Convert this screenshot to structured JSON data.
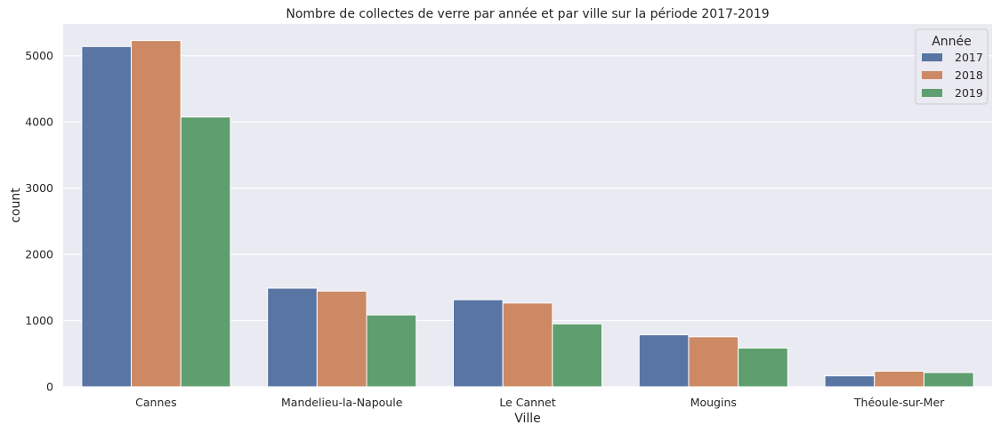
{
  "chart_data": {
    "type": "bar",
    "title": "Nombre de collectes de verre par année et par ville sur la période 2017-2019",
    "xlabel": "Ville",
    "ylabel": "count",
    "categories": [
      "Cannes",
      "Mandelieu-la-Napoule",
      "Le Cannet",
      "Mougins",
      "Théoule-sur-Mer"
    ],
    "series": [
      {
        "name": "2017",
        "color": "#5975a4",
        "values": [
          5140,
          1490,
          1315,
          785,
          165
        ]
      },
      {
        "name": "2018",
        "color": "#cc8963",
        "values": [
          5230,
          1445,
          1265,
          755,
          235
        ]
      },
      {
        "name": "2019",
        "color": "#5f9e6e",
        "values": [
          4075,
          1085,
          950,
          585,
          215
        ]
      }
    ],
    "ylim": [
      0,
      5480
    ],
    "yticks": [
      0,
      1000,
      2000,
      3000,
      4000,
      5000
    ],
    "legend": {
      "title": "Année",
      "placement": "top-right"
    },
    "grid": true,
    "background": "#eaeaf2"
  }
}
